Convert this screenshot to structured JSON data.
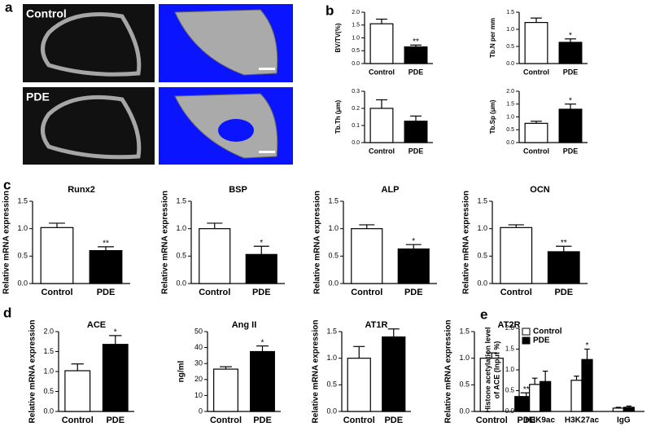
{
  "panel_labels": [
    "a",
    "b",
    "c",
    "d",
    "e"
  ],
  "images": {
    "rows": [
      "Control",
      "PDE"
    ]
  },
  "chart_data": [
    {
      "type": "bar",
      "ylabel": "BV/TV(%)",
      "categories": [
        "Control",
        "PDE"
      ],
      "values": [
        1.55,
        0.65
      ],
      "errors": [
        0.18,
        0.07
      ],
      "significance": [
        null,
        "**"
      ],
      "colors": [
        "#ffffff",
        "#000000"
      ],
      "ylim": [
        0,
        2
      ],
      "yticks": [
        {
          "value": 0,
          "label": "0.0"
        },
        {
          "value": 0.5,
          "label": "0.5"
        },
        {
          "value": 1,
          "label": "1.0"
        },
        {
          "value": 1.5,
          "label": "1.5"
        },
        {
          "value": 2,
          "label": "2.0"
        }
      ]
    },
    {
      "type": "bar",
      "ylabel": "Tb.N per mm",
      "categories": [
        "Control",
        "PDE"
      ],
      "values": [
        1.2,
        0.62
      ],
      "errors": [
        0.13,
        0.1
      ],
      "significance": [
        null,
        "*"
      ],
      "colors": [
        "#ffffff",
        "#000000"
      ],
      "ylim": [
        0,
        1.5
      ],
      "yticks": [
        {
          "value": 0,
          "label": "0.0"
        },
        {
          "value": 0.5,
          "label": "0.5"
        },
        {
          "value": 1,
          "label": "1.0"
        },
        {
          "value": 1.5,
          "label": "1.5"
        }
      ]
    },
    {
      "type": "bar",
      "ylabel": "Tb.Th (μm)",
      "categories": [
        "Control",
        "PDE"
      ],
      "values": [
        0.2,
        0.125
      ],
      "errors": [
        0.05,
        0.03
      ],
      "significance": [
        null,
        null
      ],
      "colors": [
        "#ffffff",
        "#000000"
      ],
      "ylim": [
        0,
        0.3
      ],
      "yticks": [
        {
          "value": 0,
          "label": "0.0"
        },
        0.1,
        0.2,
        0.3
      ]
    },
    {
      "type": "bar",
      "ylabel": "Tb.Sp (μm)",
      "categories": [
        "Control",
        "PDE"
      ],
      "values": [
        0.75,
        1.3
      ],
      "errors": [
        0.08,
        0.2
      ],
      "significance": [
        null,
        "*"
      ],
      "colors": [
        "#ffffff",
        "#000000"
      ],
      "ylim": [
        0,
        2
      ],
      "yticks": [
        {
          "value": 0,
          "label": "0.0"
        },
        {
          "value": 0.5,
          "label": "0.5"
        },
        {
          "value": 1,
          "label": "1.0"
        },
        {
          "value": 1.5,
          "label": "1.5"
        },
        {
          "value": 2,
          "label": "2.0"
        }
      ]
    },
    {
      "type": "bar",
      "title": "Runx2",
      "ylabel": "Relative mRNA expression",
      "categories": [
        "Control",
        "PDE"
      ],
      "values": [
        1.02,
        0.6
      ],
      "errors": [
        0.08,
        0.07
      ],
      "significance": [
        null,
        "**"
      ],
      "colors": [
        "#ffffff",
        "#000000"
      ],
      "ylim": [
        0,
        1.5
      ],
      "yticks": [
        {
          "value": 0,
          "label": "0.0"
        },
        {
          "value": 0.5,
          "label": "0.5"
        },
        {
          "value": 1,
          "label": "1.0"
        },
        {
          "value": 1.5,
          "label": "1.5"
        }
      ]
    },
    {
      "type": "bar",
      "title": "BSP",
      "ylabel": "Relative mRNA expression",
      "categories": [
        "Control",
        "PDE"
      ],
      "values": [
        1.0,
        0.53
      ],
      "errors": [
        0.1,
        0.15
      ],
      "significance": [
        null,
        "*"
      ],
      "colors": [
        "#ffffff",
        "#000000"
      ],
      "ylim": [
        0,
        1.5
      ],
      "yticks": [
        {
          "value": 0,
          "label": "0.0"
        },
        {
          "value": 0.5,
          "label": "0.5"
        },
        {
          "value": 1,
          "label": "1.0"
        },
        {
          "value": 1.5,
          "label": "1.5"
        }
      ]
    },
    {
      "type": "bar",
      "title": "ALP",
      "ylabel": "Relative mRNA expression",
      "categories": [
        "Control",
        "PDE"
      ],
      "values": [
        1.0,
        0.63
      ],
      "errors": [
        0.07,
        0.08
      ],
      "significance": [
        null,
        "*"
      ],
      "colors": [
        "#ffffff",
        "#000000"
      ],
      "ylim": [
        0,
        1.5
      ],
      "yticks": [
        {
          "value": 0,
          "label": "0.0"
        },
        {
          "value": 0.5,
          "label": "0.5"
        },
        {
          "value": 1,
          "label": "1.0"
        },
        {
          "value": 1.5,
          "label": "1.5"
        }
      ]
    },
    {
      "type": "bar",
      "title": "OCN",
      "ylabel": "Relative mRNA expression",
      "categories": [
        "Control",
        "PDE"
      ],
      "values": [
        1.02,
        0.58
      ],
      "errors": [
        0.05,
        0.1
      ],
      "significance": [
        null,
        "**"
      ],
      "colors": [
        "#ffffff",
        "#000000"
      ],
      "ylim": [
        0,
        1.5
      ],
      "yticks": [
        {
          "value": 0,
          "label": "0.0"
        },
        {
          "value": 0.5,
          "label": "0.5"
        },
        {
          "value": 1,
          "label": "1.0"
        },
        {
          "value": 1.5,
          "label": "1.5"
        }
      ]
    },
    {
      "type": "bar",
      "title": "ACE",
      "ylabel": "Relative mRNA expression",
      "categories": [
        "Control",
        "PDE"
      ],
      "values": [
        1.02,
        1.68
      ],
      "errors": [
        0.17,
        0.22
      ],
      "significance": [
        null,
        "*"
      ],
      "colors": [
        "#ffffff",
        "#000000"
      ],
      "ylim": [
        0,
        2
      ],
      "yticks": [
        {
          "value": 0,
          "label": "0.0"
        },
        {
          "value": 0.5,
          "label": "0.5"
        },
        {
          "value": 1,
          "label": "1.0"
        },
        {
          "value": 1.5,
          "label": "1.5"
        },
        {
          "value": 2,
          "label": "2.0"
        }
      ]
    },
    {
      "type": "bar",
      "title": "Ang II",
      "ylabel": "ng/ml",
      "categories": [
        "Control",
        "PDE"
      ],
      "values": [
        26.5,
        37.5
      ],
      "errors": [
        1.5,
        3.5
      ],
      "significance": [
        null,
        "*"
      ],
      "colors": [
        "#ffffff",
        "#000000"
      ],
      "ylim": [
        0,
        50
      ],
      "yticks": [
        0,
        10,
        20,
        30,
        40,
        50
      ]
    },
    {
      "type": "bar",
      "title": "AT1R",
      "ylabel": "Relative mRNA expression",
      "categories": [
        "Control",
        "PDE"
      ],
      "values": [
        1.0,
        1.4
      ],
      "errors": [
        0.22,
        0.15
      ],
      "significance": [
        null,
        null
      ],
      "colors": [
        "#ffffff",
        "#000000"
      ],
      "ylim": [
        0,
        1.5
      ],
      "yticks": [
        {
          "value": 0,
          "label": "0.0"
        },
        {
          "value": 0.5,
          "label": "0.5"
        },
        {
          "value": 1,
          "label": "1.0"
        },
        {
          "value": 1.5,
          "label": "1.5"
        }
      ]
    },
    {
      "type": "bar",
      "title": "AT2R",
      "ylabel": "Relative mRNA expression",
      "categories": [
        "Control",
        "PDE"
      ],
      "values": [
        1.0,
        0.28
      ],
      "errors": [
        0.1,
        0.07
      ],
      "significance": [
        null,
        "**"
      ],
      "colors": [
        "#ffffff",
        "#000000"
      ],
      "ylim": [
        0,
        1.5
      ],
      "yticks": [
        {
          "value": 0,
          "label": "0.0"
        },
        {
          "value": 0.5,
          "label": "0.5"
        },
        {
          "value": 1,
          "label": "1.0"
        },
        {
          "value": 1.5,
          "label": "1.5"
        }
      ]
    },
    {
      "type": "grouped_bar",
      "ylabel": [
        "Histone acetylation level",
        "of ACE (Input %)"
      ],
      "categories": [
        "H3K9ac",
        "H3K27ac",
        "IgG"
      ],
      "legend": "top-left",
      "series": [
        {
          "name": "Control",
          "color": "#ffffff",
          "values": [
            0.65,
            0.75,
            0.08
          ],
          "errors": [
            0.15,
            0.1,
            0.02
          ],
          "significance": [
            null,
            null,
            null
          ]
        },
        {
          "name": "PDE",
          "color": "#000000",
          "values": [
            0.72,
            1.25,
            0.1
          ],
          "errors": [
            0.25,
            0.25,
            0.03
          ],
          "significance": [
            null,
            "*",
            null
          ]
        }
      ],
      "ylim": [
        0,
        2
      ],
      "yticks": [
        {
          "value": 0,
          "label": "0.0"
        },
        {
          "value": 0.5,
          "label": "0.5"
        },
        {
          "value": 1,
          "label": "1.0"
        },
        {
          "value": 1.5,
          "label": "1.5"
        },
        {
          "value": 2,
          "label": "2.0"
        }
      ]
    }
  ]
}
